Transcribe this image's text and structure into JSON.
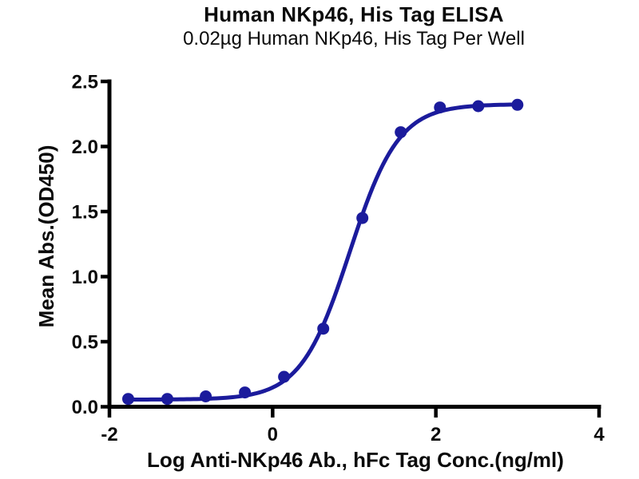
{
  "header": {
    "title": "Human NKp46, His Tag ELISA",
    "subtitle": "0.02µg Human NKp46, His Tag Per Well"
  },
  "chart_data": {
    "type": "scatter",
    "title": "Human NKp46, His Tag ELISA",
    "subtitle": "0.02µg Human NKp46, His Tag Per Well",
    "xlabel": "Log Anti-NKp46 Ab., hFc Tag Conc.(ng/ml)",
    "ylabel": "Mean Abs.(OD450)",
    "xlim": [
      -2,
      4
    ],
    "ylim": [
      0,
      2.5
    ],
    "x_ticks": [
      "-2",
      "0",
      "2",
      "4"
    ],
    "y_ticks": [
      "0.0",
      "0.5",
      "1.0",
      "1.5",
      "2.0",
      "2.5"
    ],
    "grid": false,
    "legend": "none",
    "points": {
      "x": [
        -1.77,
        -1.29,
        -0.82,
        -0.34,
        0.14,
        0.62,
        1.1,
        1.57,
        2.05,
        2.52,
        3.0
      ],
      "y": [
        0.06,
        0.06,
        0.08,
        0.11,
        0.23,
        0.6,
        1.45,
        2.11,
        2.3,
        2.31,
        2.32
      ]
    },
    "fit_curve": {
      "model": "4PL",
      "bottom": 0.055,
      "top": 2.325,
      "log_ec50": 0.945,
      "hill_slope": 1.45,
      "x_start": -1.77,
      "x_end": 3.0
    },
    "colors": {
      "curve": "#1B1B9C",
      "marker": "#1B1B9C",
      "axis": "#000000",
      "text": "#0a0a0a"
    }
  }
}
